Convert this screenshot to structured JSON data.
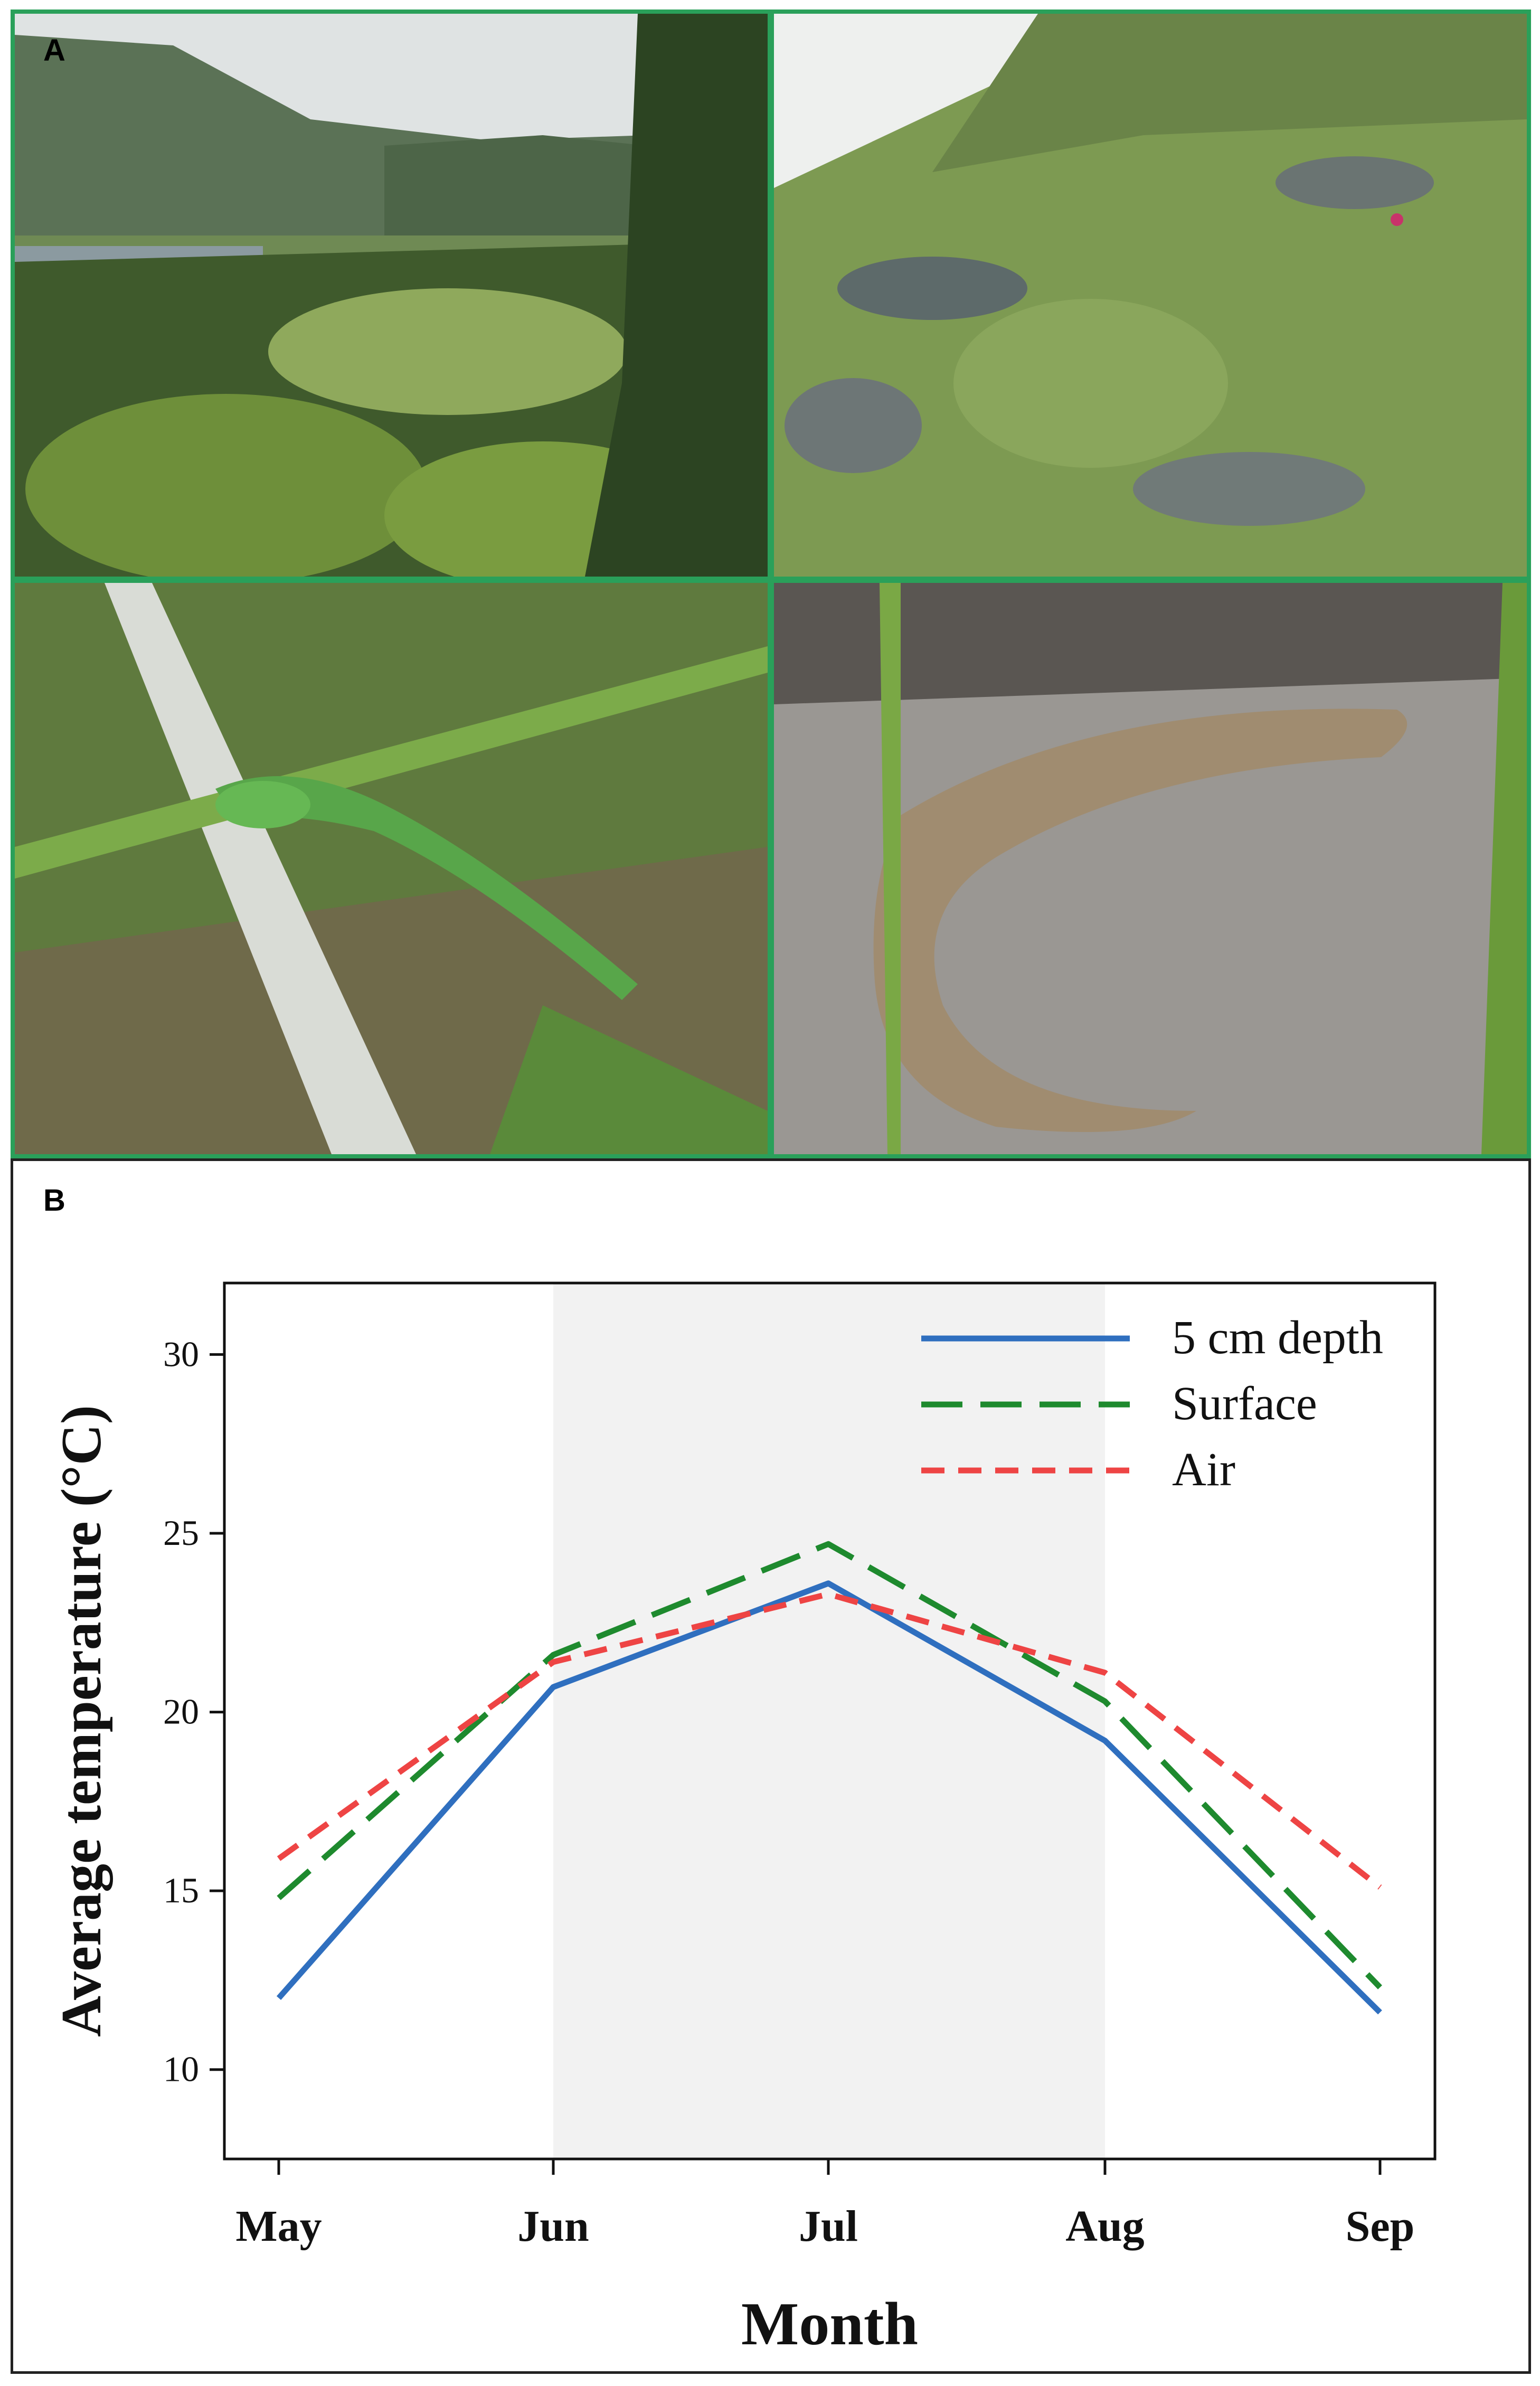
{
  "figure": {
    "panel_a_label": "A",
    "panel_b_label": "B"
  },
  "photos": [
    {
      "subject": "forested mountain valley with lake",
      "palette": "green"
    },
    {
      "subject": "grassy rocky slope with larch trees",
      "palette": "green-grey"
    },
    {
      "subject": "green lizard on birch branch among grass",
      "palette": "green"
    },
    {
      "subject": "brown spotted lizard on weathered wood",
      "palette": "grey-brown"
    }
  ],
  "chart_data": {
    "type": "line",
    "xlabel": "Month",
    "ylabel": "Average temperature (°C)",
    "categories": [
      "May",
      "Jun",
      "Jul",
      "Aug",
      "Sep"
    ],
    "yticks": [
      10,
      15,
      20,
      25,
      30
    ],
    "ylim": [
      7.5,
      32
    ],
    "shaded_region": {
      "from": "Jun",
      "to": "Aug",
      "color": "#f2f2f2"
    },
    "legend_position": "top-right",
    "grid": false,
    "series": [
      {
        "name": "5 cm depth",
        "values": [
          12.0,
          20.7,
          23.6,
          19.2,
          11.6
        ],
        "color": "#2f6fbf",
        "dash": "solid"
      },
      {
        "name": "Surface",
        "values": [
          14.8,
          21.6,
          24.7,
          20.3,
          12.3
        ],
        "color": "#1e8a2e",
        "dash": "long"
      },
      {
        "name": "Air",
        "values": [
          15.9,
          21.4,
          23.3,
          21.1,
          15.1
        ],
        "color": "#ee4444",
        "dash": "short"
      }
    ]
  }
}
